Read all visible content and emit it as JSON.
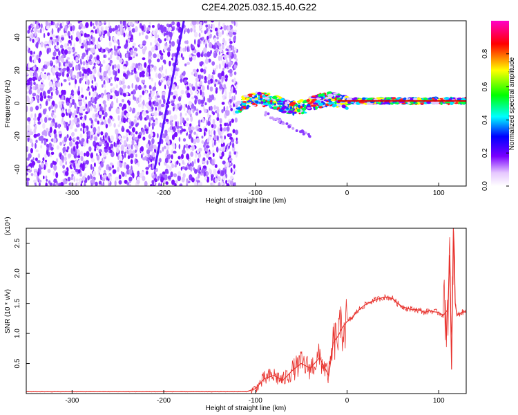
{
  "title": "C2E4.2025.032.15.40.G22",
  "chart_data": [
    {
      "type": "heatmap",
      "xlabel": "Height of straight line (km)",
      "ylabel": "Frequency (Hz)",
      "xlim": [
        -350,
        130
      ],
      "ylim": [
        -50,
        50
      ],
      "xticks": [
        "-300",
        "-200",
        "-100",
        "0",
        "100"
      ],
      "yticks": [
        "-40",
        "-20",
        "0",
        "20",
        "40"
      ],
      "colorbar": {
        "label": "Normalized spectral amplitude",
        "ticks": [
          "0.0",
          "0.2",
          "0.4",
          "0.6",
          "0.8"
        ],
        "range": [
          0,
          1
        ],
        "colormap": [
          "#ffffff",
          "#e6c8ff",
          "#7a00ff",
          "#0000ff",
          "#00ffff",
          "#00ff00",
          "#ffff00",
          "#ff0000",
          "#ff00c8"
        ]
      },
      "features": {
        "noise_region_x": [
          -350,
          -120
        ],
        "line_from": [
          -210,
          -40
        ],
        "line_to": [
          -178,
          50
        ],
        "signal_line_x": [
          -120,
          130
        ],
        "signal_line_y": 0
      }
    },
    {
      "type": "line",
      "xlabel": "Height of straight line (km)",
      "ylabel": "SNR (10 * v/v)",
      "multiplier": "(x10⁴)",
      "xlim": [
        -350,
        130
      ],
      "ylim": [
        0,
        2.75
      ],
      "xticks": [
        "-300",
        "-200",
        "-100",
        "0",
        "100"
      ],
      "yticks": [
        "0.5",
        "1.0",
        "1.5",
        "2.0",
        "2.5"
      ],
      "color": "#e8322d",
      "series": [
        {
          "x": [
            -350,
            -300,
            -250,
            -200,
            -150,
            -110,
            -100,
            -90,
            -80,
            -70,
            -60,
            -50,
            -40,
            -30,
            -25,
            -20,
            -15,
            -10,
            -5,
            0,
            5,
            10,
            15,
            20,
            25,
            30,
            35,
            40,
            45,
            50,
            55,
            60,
            65,
            70,
            75,
            80,
            85,
            90,
            95,
            100,
            105,
            110,
            112,
            114,
            116,
            118,
            120,
            125,
            130
          ],
          "values": [
            0.03,
            0.03,
            0.03,
            0.03,
            0.03,
            0.03,
            0.08,
            0.25,
            0.3,
            0.22,
            0.38,
            0.5,
            0.42,
            0.6,
            0.45,
            0.3,
            0.85,
            0.95,
            1.1,
            1.2,
            1.25,
            1.35,
            1.42,
            1.48,
            1.52,
            1.55,
            1.58,
            1.6,
            1.6,
            1.58,
            1.5,
            1.45,
            1.42,
            1.4,
            1.4,
            1.38,
            1.35,
            1.38,
            1.36,
            1.35,
            1.3,
            1.4,
            2.3,
            0.4,
            2.75,
            1.5,
            1.3,
            1.35,
            1.36
          ]
        }
      ]
    }
  ]
}
